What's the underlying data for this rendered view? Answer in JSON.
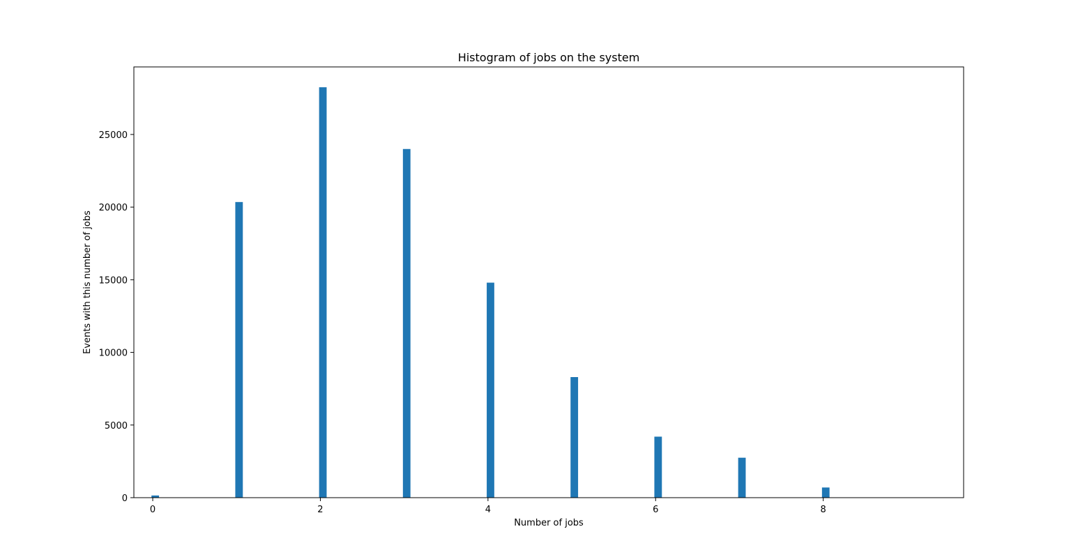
{
  "chart_data": {
    "type": "bar",
    "title": "Histogram of jobs on the system",
    "xlabel": "Number of jobs",
    "ylabel": "Events with this number of jobs",
    "x": [
      0,
      1,
      2,
      3,
      4,
      5,
      6,
      7,
      8
    ],
    "values": [
      150,
      20350,
      28250,
      24000,
      14800,
      8300,
      4200,
      2750,
      700
    ],
    "bar_width": 0.09,
    "bar_offset": 0.03,
    "xlim": [
      -0.225,
      9.675
    ],
    "ylim": [
      0,
      29650
    ],
    "xticks": [
      0,
      2,
      4,
      6,
      8
    ],
    "yticks": [
      0,
      5000,
      10000,
      15000,
      20000,
      25000
    ],
    "bar_color": "#1f77b4",
    "grid": false,
    "legend": "none"
  }
}
